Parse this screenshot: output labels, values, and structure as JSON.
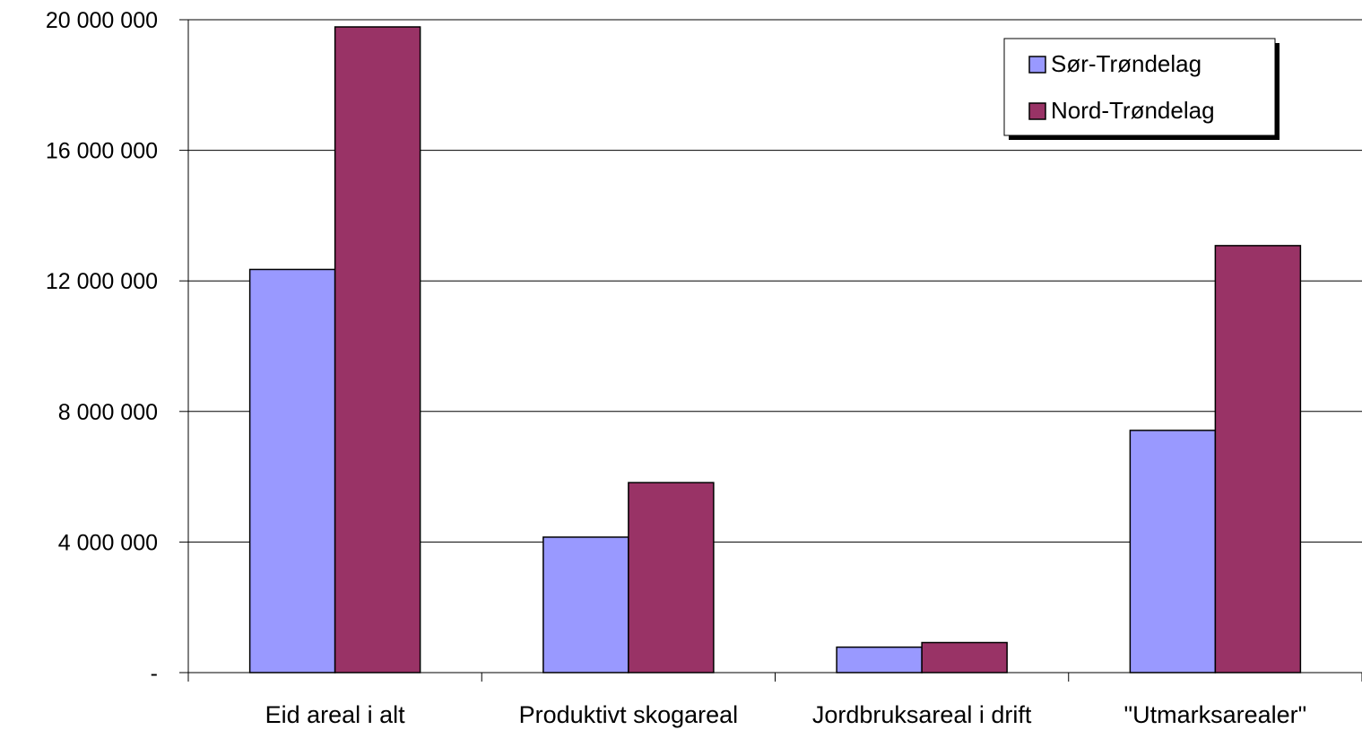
{
  "chart_data": {
    "type": "bar",
    "title": "",
    "xlabel": "",
    "ylabel": "",
    "categories": [
      "Eid areal i alt",
      "Produktivt skogareal",
      "Jordbruksareal i drift",
      "\"Utmarksarealer\""
    ],
    "series": [
      {
        "name": "Sør-Trøndelag",
        "color": "#9999FF",
        "values": [
          12350000,
          4150000,
          780000,
          7420000
        ]
      },
      {
        "name": "Nord-Trøndelag",
        "color": "#993366",
        "values": [
          19780000,
          5820000,
          920000,
          13080000
        ]
      }
    ],
    "ylim": [
      0,
      20000000
    ],
    "yticks": [
      0,
      4000000,
      8000000,
      12000000,
      16000000,
      20000000
    ],
    "ytick_labels": [
      "-",
      "4 000 000",
      "8 000 000",
      "12 000 000",
      "16 000 000",
      "20 000 000"
    ],
    "grid": true,
    "legend_position": "top-right"
  }
}
